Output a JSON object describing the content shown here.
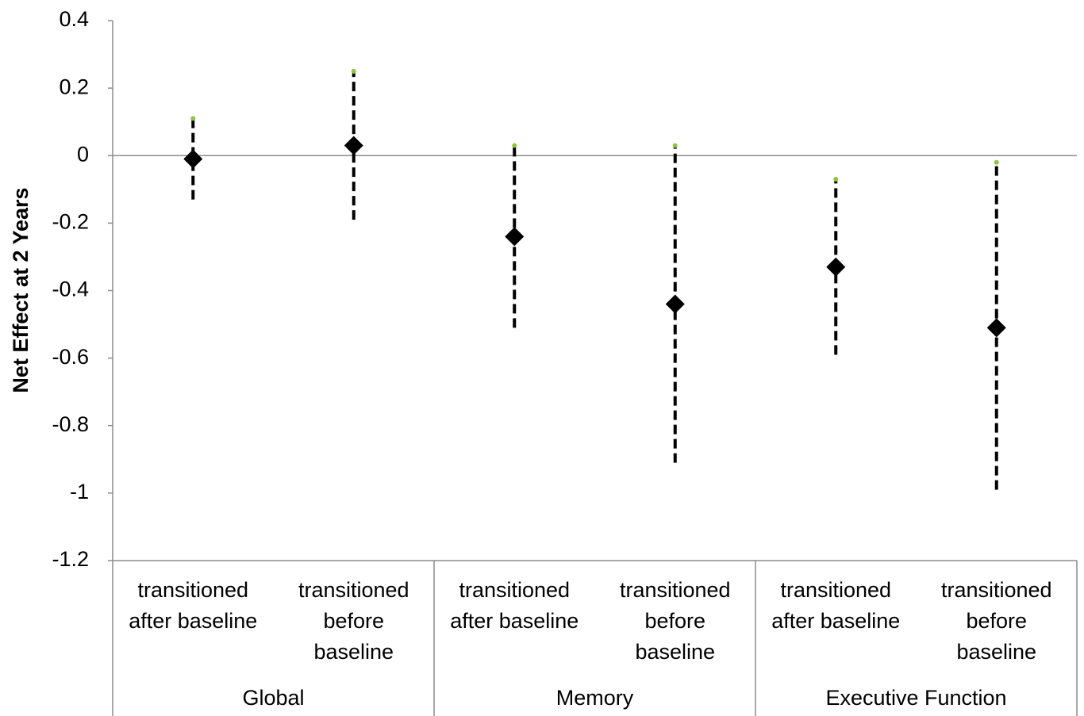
{
  "chart_data": {
    "type": "errorbar",
    "y_label": "Net Effect at 2 Years",
    "categories": [
      [
        "transitioned",
        "after baseline"
      ],
      [
        "transitioned",
        "before",
        "baseline"
      ],
      [
        "transitioned",
        "after baseline"
      ],
      [
        "transitioned",
        "before",
        "baseline"
      ],
      [
        "transitioned",
        "after baseline"
      ],
      [
        "transitioned",
        "before",
        "baseline"
      ]
    ],
    "groups": [
      "Global",
      "Memory",
      "Executive Function"
    ],
    "values": [
      -0.01,
      0.03,
      -0.24,
      -0.44,
      -0.33,
      -0.51
    ],
    "lower": [
      -0.13,
      -0.19,
      -0.51,
      -0.91,
      -0.59,
      -0.99
    ],
    "upper": [
      0.11,
      0.25,
      0.03,
      0.03,
      -0.07,
      -0.02
    ],
    "color": "#000000",
    "cap_color": "#8dc63f",
    "ylim": [
      -1.2,
      0.4
    ],
    "yticks": [
      -1.2,
      -1,
      -0.8,
      -0.6,
      -0.4,
      -0.2,
      0,
      0.2,
      0.4
    ]
  }
}
